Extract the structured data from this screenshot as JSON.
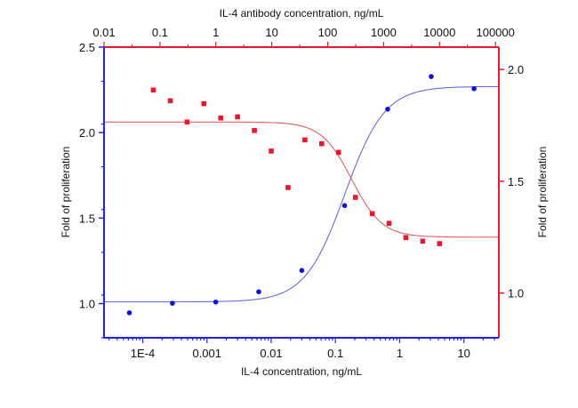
{
  "chart_data": {
    "type": "scatter",
    "title": "",
    "x_bottom": {
      "label": "IL-4 concentration, ng/mL",
      "scale": "log",
      "range": [
        2.5e-05,
        35
      ],
      "ticks": [
        0.0001,
        0.001,
        0.01,
        0.1,
        1,
        10
      ],
      "tick_labels": [
        "1E-4",
        "0.001",
        "0.01",
        "0.1",
        "1",
        "10"
      ],
      "color": "#2222ee"
    },
    "x_top": {
      "label": "IL-4 antibody concentration, ng/mL",
      "scale": "log",
      "range": [
        0.01,
        115000
      ],
      "ticks": [
        0.01,
        0.1,
        1,
        10,
        100,
        1000,
        10000,
        100000
      ],
      "tick_labels": [
        "0.01",
        "0.1",
        "1",
        "10",
        "100",
        "1000",
        "10000",
        "100000"
      ],
      "color": "#e8192c"
    },
    "y_left": {
      "label": "Fold of proliferation",
      "range": [
        0.8,
        2.5
      ],
      "ticks": [
        1.0,
        1.5,
        2.0,
        2.5
      ],
      "tick_labels": [
        "1.0",
        "1.5",
        "2.0",
        "2.5"
      ],
      "minor_step": 0.25,
      "color": "#2222ee"
    },
    "y_right": {
      "label": "Fold of proliferation",
      "range": [
        0.8,
        2.1
      ],
      "ticks": [
        1.0,
        1.5,
        2.0
      ],
      "tick_labels": [
        "1.0",
        "1.5",
        "2.0"
      ],
      "minor_step": 0.25,
      "color": "#e8192c"
    },
    "grid": false,
    "series": [
      {
        "axes": "bottom-left",
        "marker": "circle",
        "color": "#1010dd",
        "fit_color": "#6a6ad8",
        "x": [
          6.2e-05,
          0.00029,
          0.00137,
          0.0064,
          0.03,
          0.139,
          0.65,
          3.1,
          14.4
        ],
        "y": [
          0.946,
          1.002,
          1.009,
          1.069,
          1.194,
          1.573,
          2.137,
          2.328,
          2.257
        ],
        "fit": {
          "model": "4PL",
          "bottom": 1.01,
          "top": 2.27,
          "ec50": 0.14,
          "hill": 1.4
        }
      },
      {
        "axes": "top-right",
        "marker": "square",
        "color": "#e8192c",
        "fit_color": "#e06060",
        "x": [
          0.076,
          0.153,
          0.305,
          0.61,
          1.22,
          2.44,
          4.88,
          9.77,
          19.5,
          39.1,
          78.1,
          156,
          313,
          625,
          1250,
          2500,
          5000,
          10000
        ],
        "y": [
          1.908,
          1.86,
          1.765,
          1.847,
          1.783,
          1.788,
          1.727,
          1.635,
          1.472,
          1.685,
          1.668,
          1.629,
          1.428,
          1.355,
          1.312,
          1.248,
          1.232,
          1.221
        ],
        "fit": {
          "model": "4PL",
          "bottom": 1.25,
          "top": 1.765,
          "ic50": 270,
          "hill": 1.6
        }
      }
    ]
  }
}
